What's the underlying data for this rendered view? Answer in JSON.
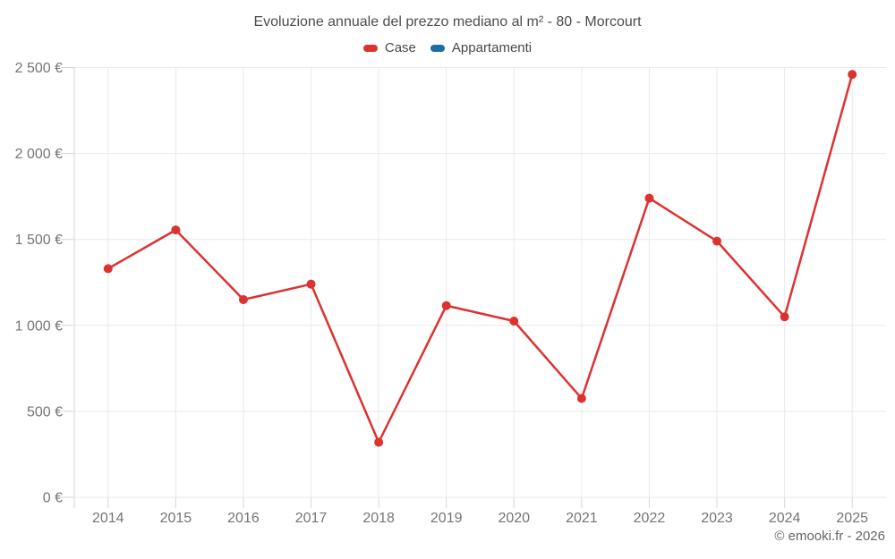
{
  "chart_data": {
    "type": "line",
    "title": "Evoluzione annuale del prezzo mediano al m² - 80 - Morcourt",
    "categories": [
      "2014",
      "2015",
      "2016",
      "2017",
      "2018",
      "2019",
      "2020",
      "2021",
      "2022",
      "2023",
      "2024",
      "2025"
    ],
    "series": [
      {
        "name": "Case",
        "color": "#dc3230",
        "values": [
          1330,
          1555,
          1150,
          1240,
          320,
          1115,
          1025,
          575,
          1740,
          1490,
          1050,
          2460
        ]
      },
      {
        "name": "Appartamenti",
        "color": "#1c6ea4",
        "values": []
      }
    ],
    "xlabel": "",
    "ylabel": "",
    "ylim": [
      0,
      2500
    ],
    "y_ticks": {
      "values": [
        0,
        500,
        1000,
        1500,
        2000,
        2500
      ],
      "labels": [
        "0 €",
        "500 €",
        "1 000 €",
        "1 500 €",
        "2 000 €",
        "2 500 €"
      ]
    },
    "grid": true,
    "legend_position": "top"
  },
  "colors": {
    "grid": "#e9e9e9",
    "axis": "#d6d6d6",
    "tick_text": "#757575",
    "title_text": "#4d4d4d"
  },
  "footer": {
    "credit": "© emooki.fr - 2026"
  }
}
